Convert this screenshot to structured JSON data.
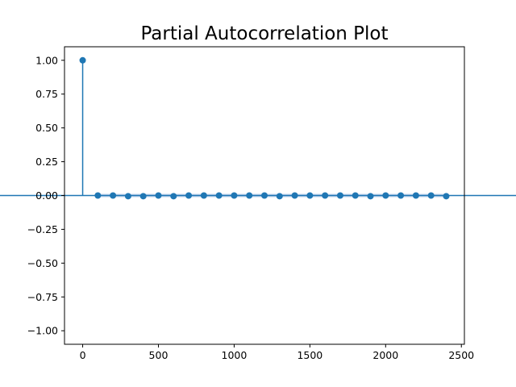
{
  "chart_data": {
    "type": "scatter",
    "style": "stem",
    "title": "Partial Autocorrelation Plot",
    "xlabel": "",
    "ylabel": "",
    "xlim": [
      -120,
      2520
    ],
    "ylim": [
      -1.1,
      1.1
    ],
    "x_ticks": [
      0,
      500,
      1000,
      1500,
      2000,
      2500
    ],
    "x_tick_labels": [
      "0",
      "500",
      "1000",
      "1500",
      "2000",
      "2500"
    ],
    "y_ticks": [
      1.0,
      0.75,
      0.5,
      0.25,
      0.0,
      -0.25,
      -0.5,
      -0.75,
      -1.0
    ],
    "y_tick_labels": [
      "1.00",
      "0.75",
      "0.50",
      "0.25",
      "0.00",
      "−0.25",
      "−0.50",
      "−0.75",
      "−1.00"
    ],
    "grid": false,
    "legend": "none",
    "x": [
      0,
      100,
      200,
      300,
      400,
      500,
      600,
      700,
      800,
      900,
      1000,
      1100,
      1200,
      1300,
      1400,
      1500,
      1600,
      1700,
      1800,
      1900,
      2000,
      2100,
      2200,
      2300,
      2400
    ],
    "values": [
      1.0,
      0.0,
      0.0,
      -0.005,
      -0.005,
      0.0,
      -0.005,
      0.0,
      0.0,
      0.0,
      0.0,
      0.0,
      0.0,
      -0.005,
      0.0,
      0.0,
      0.0,
      0.0,
      0.0,
      -0.005,
      0.0,
      0.0,
      0.0,
      0.0,
      -0.005
    ],
    "confidence_interval": {
      "lower": -0.012,
      "upper": 0.012
    },
    "colors": {
      "series": "#1f77b4",
      "band": "#aec7e8",
      "zero_line": "#1f77b4"
    }
  }
}
